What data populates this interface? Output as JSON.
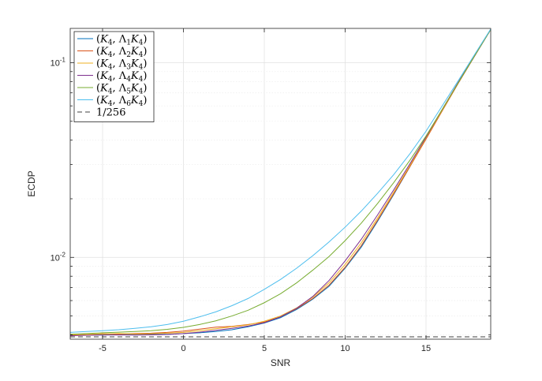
{
  "chart_data": {
    "type": "line",
    "xlabel": "SNR",
    "ylabel": "ECDP",
    "xlim": [
      -7,
      19
    ],
    "ylim": [
      0.0038,
      0.15
    ],
    "yscale": "log",
    "grid": true,
    "legend_position": "top-left",
    "x_ticks": [
      -5,
      0,
      5,
      10,
      15
    ],
    "x_tick_labels": [
      "-5",
      "0",
      "5",
      "10",
      "15"
    ],
    "y_ticks": [
      0.01,
      0.1
    ],
    "y_tick_base": [
      "10",
      "10"
    ],
    "y_tick_exp": [
      "-2",
      "-1"
    ],
    "x": [
      -7,
      -6,
      -5,
      -4,
      -3,
      -2,
      -1,
      0,
      1,
      2,
      3,
      4,
      5,
      6,
      7,
      8,
      9,
      10,
      11,
      12,
      13,
      14,
      15,
      16,
      17,
      18,
      19
    ],
    "series": [
      {
        "name": "(K4, Λ1K4)",
        "color": "#0072BD",
        "style": "solid",
        "values": [
          0.004,
          0.004,
          0.00402,
          0.00403,
          0.00402,
          0.00404,
          0.00403,
          0.00406,
          0.0041,
          0.00416,
          0.00425,
          0.0044,
          0.0046,
          0.0049,
          0.0054,
          0.0061,
          0.0071,
          0.0088,
          0.0113,
          0.0153,
          0.021,
          0.0292,
          0.041,
          0.057,
          0.079,
          0.108,
          0.148
        ]
      },
      {
        "name": "(K4, Λ2K4)",
        "color": "#D95319",
        "style": "solid",
        "values": [
          0.004,
          0.00402,
          0.00405,
          0.00404,
          0.00406,
          0.00408,
          0.00412,
          0.00418,
          0.00428,
          0.00438,
          0.00442,
          0.00452,
          0.00465,
          0.00495,
          0.00545,
          0.00615,
          0.0072,
          0.0089,
          0.0115,
          0.0155,
          0.0212,
          0.0292,
          0.0405,
          0.0565,
          0.0785,
          0.108,
          0.148
        ]
      },
      {
        "name": "(K4, Λ3K4)",
        "color": "#EDB120",
        "style": "solid",
        "values": [
          0.00398,
          0.00402,
          0.00404,
          0.00406,
          0.00404,
          0.00405,
          0.00408,
          0.00412,
          0.0042,
          0.0043,
          0.0044,
          0.0045,
          0.0047,
          0.005,
          0.0055,
          0.00625,
          0.0074,
          0.0092,
          0.0119,
          0.0159,
          0.0216,
          0.0296,
          0.041,
          0.057,
          0.079,
          0.1085,
          0.148
        ]
      },
      {
        "name": "(K4, Λ4K4)",
        "color": "#7E2F8E",
        "style": "solid",
        "values": [
          0.00396,
          0.00398,
          0.00399,
          0.004,
          0.00399,
          0.004,
          0.00402,
          0.00406,
          0.00413,
          0.00422,
          0.00432,
          0.00444,
          0.00462,
          0.00495,
          0.00548,
          0.0063,
          0.0076,
          0.0096,
          0.0124,
          0.0165,
          0.0222,
          0.0302,
          0.0415,
          0.0575,
          0.0795,
          0.109,
          0.148
        ]
      },
      {
        "name": "(K4, Λ5K4)",
        "color": "#77AC30",
        "style": "solid",
        "values": [
          0.00403,
          0.00406,
          0.0041,
          0.00413,
          0.00416,
          0.0042,
          0.00427,
          0.00437,
          0.00452,
          0.00472,
          0.005,
          0.00535,
          0.00585,
          0.0065,
          0.0074,
          0.0086,
          0.0101,
          0.0122,
          0.015,
          0.0189,
          0.0242,
          0.0315,
          0.042,
          0.0575,
          0.079,
          0.1085,
          0.148
        ]
      },
      {
        "name": "(K4, Λ6K4)",
        "color": "#4DBEEE",
        "style": "solid",
        "values": [
          0.00412,
          0.00416,
          0.0042,
          0.00425,
          0.00432,
          0.0044,
          0.00452,
          0.0047,
          0.00495,
          0.00525,
          0.00565,
          0.00615,
          0.00685,
          0.0077,
          0.0088,
          0.0102,
          0.012,
          0.0143,
          0.0173,
          0.0213,
          0.0266,
          0.034,
          0.0445,
          0.06,
          0.081,
          0.11,
          0.149
        ]
      },
      {
        "name": "1/256",
        "color": "#404040",
        "style": "dashed",
        "values": [
          0.00390625,
          0.00390625,
          0.00390625,
          0.00390625,
          0.00390625,
          0.00390625,
          0.00390625,
          0.00390625,
          0.00390625,
          0.00390625,
          0.00390625,
          0.00390625,
          0.00390625,
          0.00390625,
          0.00390625,
          0.00390625,
          0.00390625,
          0.00390625,
          0.00390625,
          0.00390625,
          0.00390625,
          0.00390625,
          0.00390625,
          0.00390625,
          0.00390625,
          0.00390625,
          0.00390625
        ]
      }
    ]
  }
}
